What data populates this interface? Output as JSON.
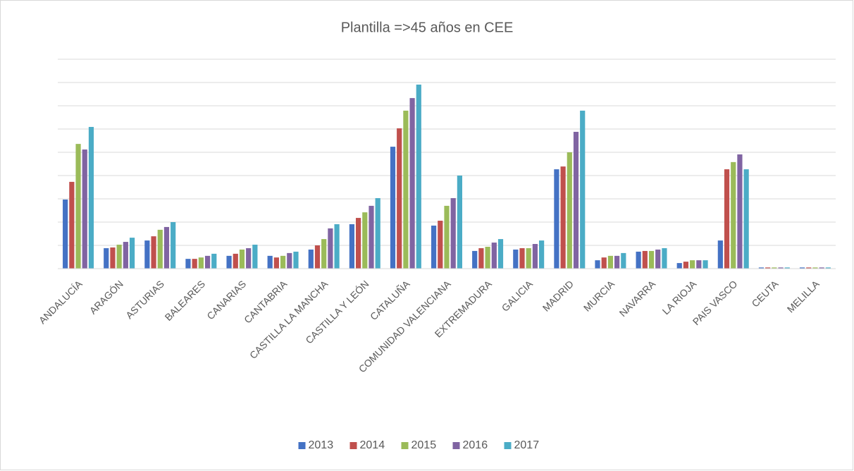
{
  "chart_data": {
    "type": "bar",
    "title": "Plantilla =>45 años en CEE",
    "categories": [
      "ANDALUCÍA",
      "ARAGÓN",
      "ASTURIAS",
      "BALEARES",
      "CANARIAS",
      "CANTABRIA",
      "CASTILLA LA MANCHA",
      "CASTILLA Y LEÓN",
      "CATALUÑA",
      "COMUNIDAD  VALENCIANA",
      "EXTREMADURA",
      "GALICIA",
      "MADRID",
      "MURCIA",
      "NAVARRA",
      "LA RIOJA",
      "PAIS VASCO",
      "CEUTA",
      "MELILLA"
    ],
    "series": [
      {
        "name": "2013",
        "color": "#4472c4",
        "values": [
          2.97,
          0.88,
          1.21,
          0.42,
          0.55,
          0.55,
          0.82,
          1.91,
          5.24,
          1.85,
          0.76,
          0.82,
          4.27,
          0.36,
          0.73,
          0.24,
          1.21,
          0.05,
          0.05
        ]
      },
      {
        "name": "2014",
        "color": "#c0504d",
        "values": [
          3.73,
          0.91,
          1.39,
          0.42,
          0.64,
          0.48,
          1.0,
          2.18,
          6.03,
          2.06,
          0.88,
          0.88,
          4.39,
          0.48,
          0.76,
          0.3,
          4.27,
          0.05,
          0.05
        ]
      },
      {
        "name": "2015",
        "color": "#9bbb59",
        "values": [
          5.36,
          1.03,
          1.67,
          0.48,
          0.82,
          0.55,
          1.27,
          2.42,
          6.79,
          2.7,
          0.94,
          0.88,
          5.0,
          0.55,
          0.76,
          0.36,
          4.58,
          0.05,
          0.05
        ]
      },
      {
        "name": "2016",
        "color": "#8064a2",
        "values": [
          5.12,
          1.15,
          1.79,
          0.55,
          0.88,
          0.67,
          1.73,
          2.7,
          7.33,
          3.03,
          1.12,
          1.06,
          5.88,
          0.55,
          0.82,
          0.36,
          4.91,
          0.05,
          0.05
        ]
      },
      {
        "name": "2017",
        "color": "#4bacc6",
        "values": [
          6.09,
          1.33,
          2.0,
          0.64,
          1.03,
          0.73,
          1.91,
          3.03,
          7.91,
          4.0,
          1.27,
          1.21,
          6.79,
          0.67,
          0.88,
          0.36,
          4.27,
          0.05,
          0.05
        ]
      }
    ],
    "ylim": [
      0,
      9
    ],
    "yticks": [
      0,
      1,
      2,
      3,
      4,
      5,
      6,
      7,
      8,
      9
    ],
    "grid": true,
    "legend": "bottom"
  }
}
